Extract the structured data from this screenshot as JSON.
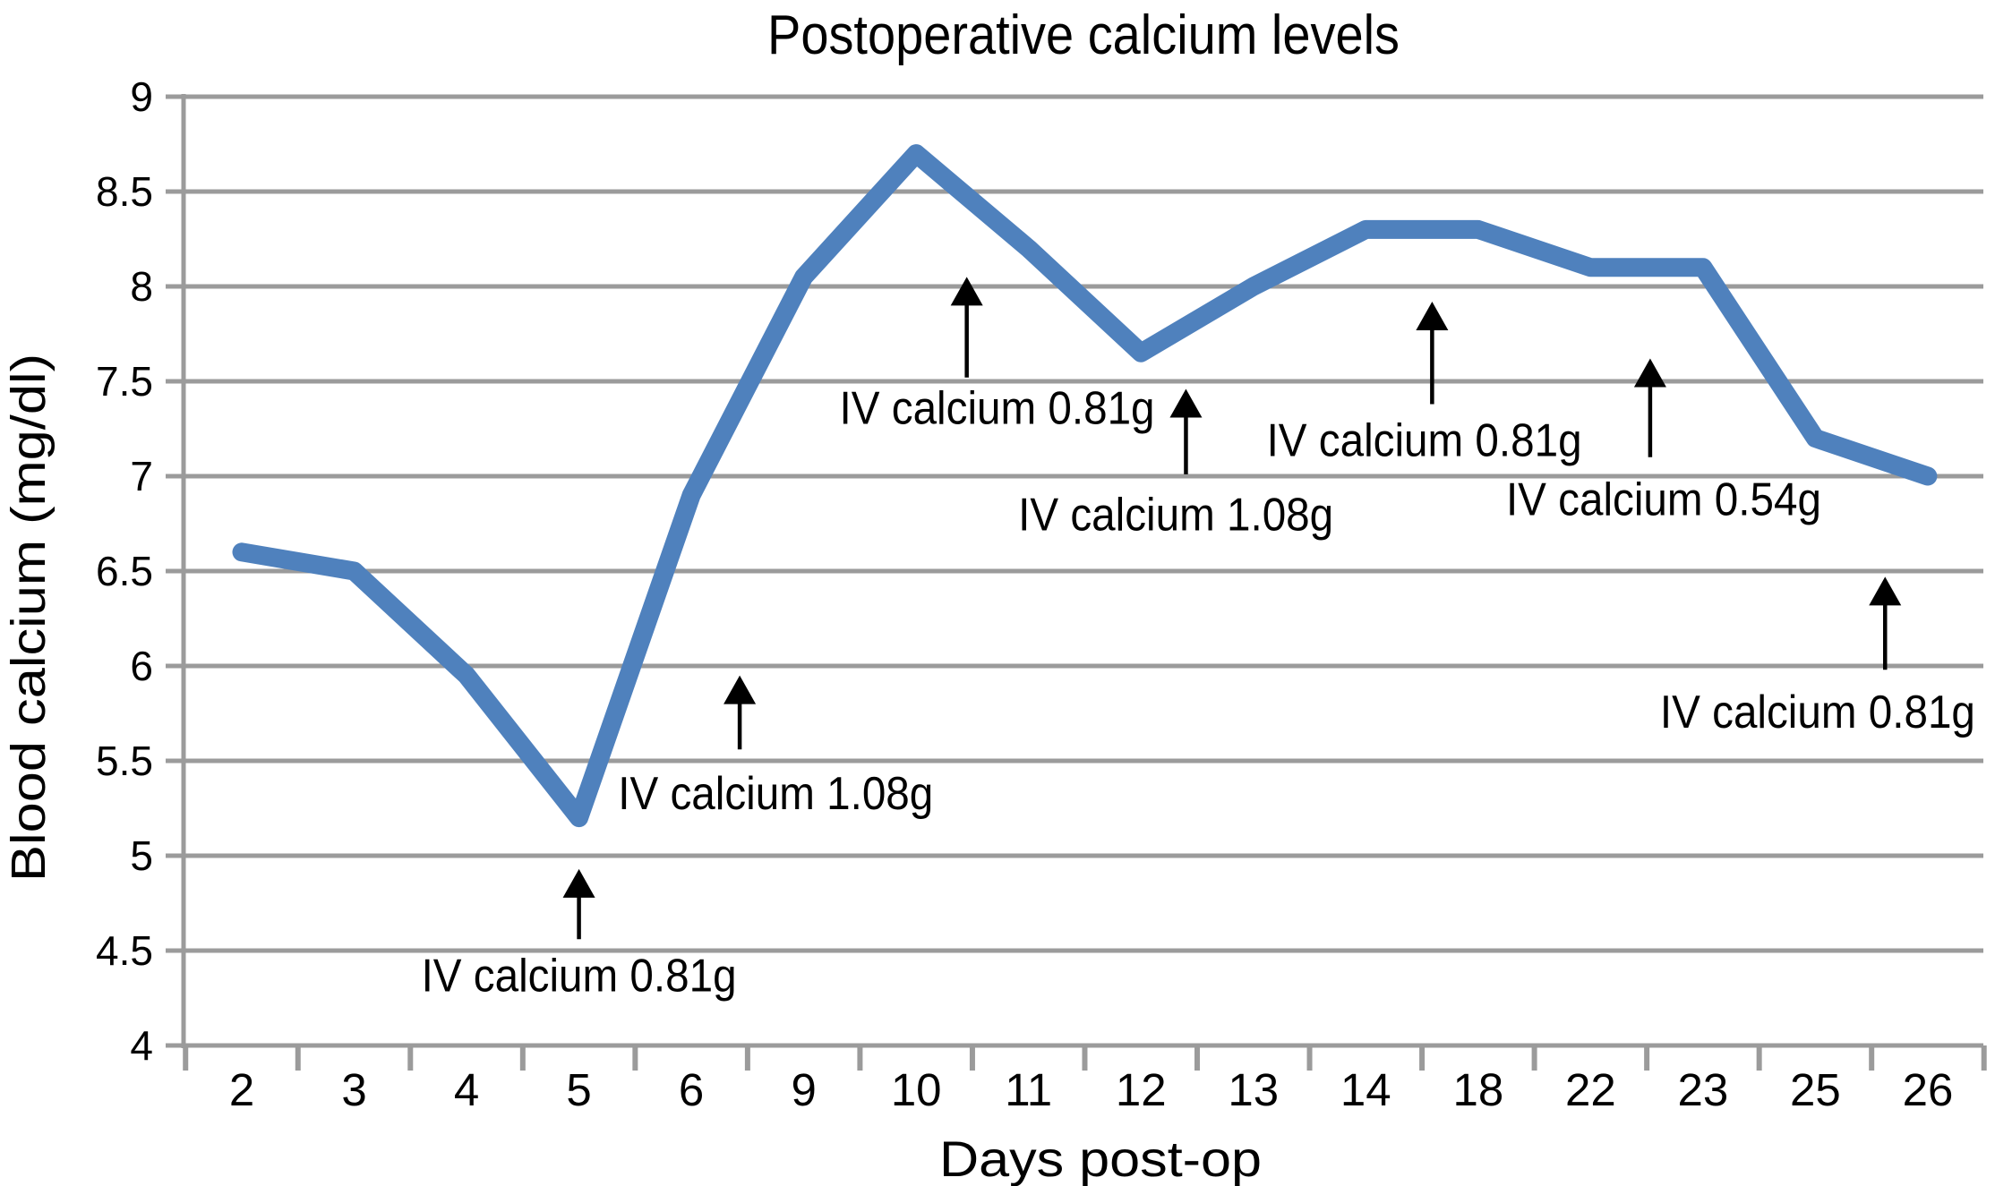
{
  "chart_data": {
    "type": "line",
    "title": "Postoperative calcium levels",
    "xlabel": "Days post-op",
    "ylabel": "Blood calcium (mg/dl)",
    "categories": [
      2,
      3,
      4,
      5,
      6,
      9,
      10,
      11,
      12,
      13,
      14,
      18,
      22,
      23,
      25,
      26
    ],
    "values": [
      6.6,
      6.5,
      5.95,
      5.2,
      6.9,
      8.05,
      8.7,
      8.2,
      7.65,
      8.0,
      8.3,
      8.3,
      8.1,
      8.1,
      7.2,
      7.0
    ],
    "series_name": "Blood calcium",
    "ylim": [
      4,
      9
    ],
    "ytick_step": 0.5,
    "grid": "horizontal",
    "legend": "none",
    "line_color": "#4F81BD",
    "grid_color": "#9b9b9b",
    "annotation_color": "#000000",
    "annotations": [
      {
        "label": "IV calcium 0.81g",
        "arrow_pos": 3.0,
        "arrow_tip": 4.93,
        "arrow_tail": 4.56,
        "label_pos": 3.0,
        "label_value": 4.37
      },
      {
        "label": "IV calcium 1.08g",
        "arrow_pos": 4.43,
        "arrow_tip": 5.95,
        "arrow_tail": 5.56,
        "label_pos": 4.75,
        "label_value": 5.33
      },
      {
        "label": "IV calcium 0.81g",
        "arrow_pos": 6.45,
        "arrow_tip": 8.05,
        "arrow_tail": 7.52,
        "label_pos": 6.72,
        "label_value": 7.36
      },
      {
        "label": "IV calcium 1.08g",
        "arrow_pos": 8.4,
        "arrow_tip": 7.46,
        "arrow_tail": 7.01,
        "label_pos": 8.31,
        "label_value": 6.8
      },
      {
        "label": "IV calcium 0.81g",
        "arrow_pos": 10.59,
        "arrow_tip": 7.92,
        "arrow_tail": 7.38,
        "label_pos": 10.52,
        "label_value": 7.19
      },
      {
        "label": "IV calcium 0.54g",
        "arrow_pos": 12.53,
        "arrow_tip": 7.62,
        "arrow_tail": 7.1,
        "label_pos": 12.65,
        "label_value": 6.88
      },
      {
        "label": "IV calcium 0.81g",
        "arrow_pos": 14.62,
        "arrow_tip": 6.47,
        "arrow_tail": 5.98,
        "label_pos": 14.02,
        "label_value": 5.76
      }
    ]
  }
}
